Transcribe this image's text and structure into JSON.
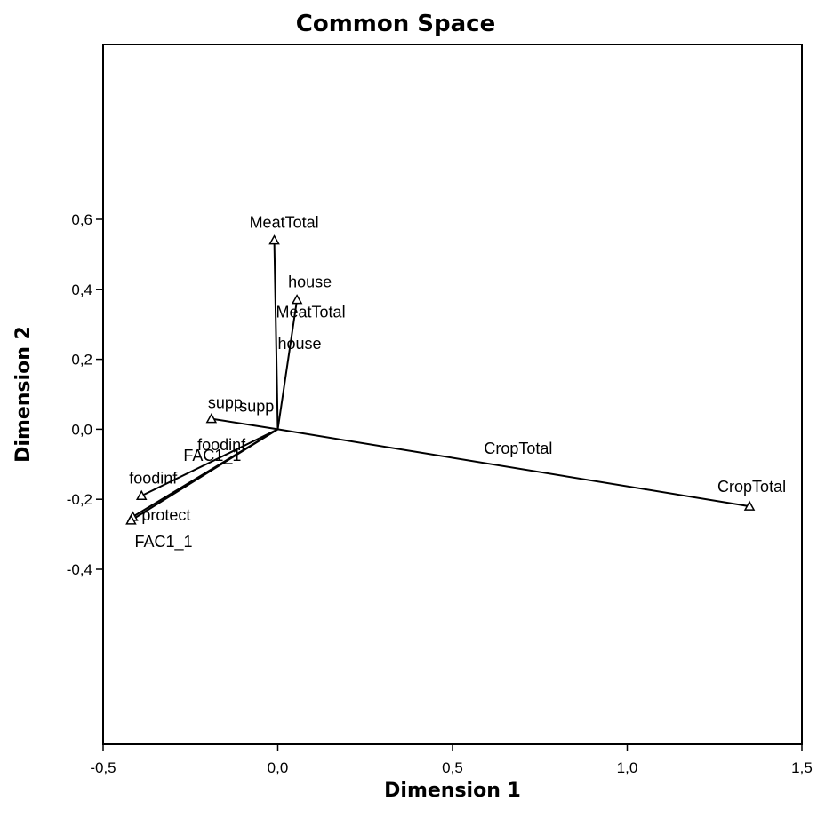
{
  "chart_data": {
    "type": "scatter",
    "title": "Common Space",
    "xlabel": "Dimension 1",
    "ylabel": "Dimension 2",
    "xlim": [
      -0.5,
      1.5
    ],
    "ylim": [
      -0.9,
      1.1
    ],
    "x_ticks": [
      -0.5,
      0.0,
      0.5,
      1.0,
      1.5
    ],
    "x_tick_labels": [
      "-0,5",
      "0,0",
      "0,5",
      "1,0",
      "1,5"
    ],
    "y_ticks": [
      -0.4,
      -0.2,
      0.0,
      0.2,
      0.4,
      0.6
    ],
    "y_tick_labels": [
      "-0,4",
      "-0,2",
      "0,0",
      "0,2",
      "0,4",
      "0,6"
    ],
    "grid": false,
    "legend": "none",
    "origin": [
      0.0,
      0.0
    ],
    "points": [
      {
        "label": "MeatTotal",
        "x": -0.01,
        "y": 0.54
      },
      {
        "label": "house",
        "x": 0.055,
        "y": 0.37
      },
      {
        "label": "supp",
        "x": -0.19,
        "y": 0.03
      },
      {
        "label": "foodinf",
        "x": -0.39,
        "y": -0.19
      },
      {
        "label": "protect",
        "x": -0.415,
        "y": -0.25
      },
      {
        "label": "FAC1_1",
        "x": -0.42,
        "y": -0.26
      },
      {
        "label": "CropTotal",
        "x": 1.35,
        "y": -0.22
      }
    ],
    "vector_labels": [
      {
        "label": "MeatTotal",
        "x": -0.005,
        "y": 0.32
      },
      {
        "label": "house",
        "x": 0.0,
        "y": 0.23
      },
      {
        "label": "supp",
        "x": -0.11,
        "y": 0.05
      },
      {
        "label": "foodinf",
        "x": -0.23,
        "y": -0.06
      },
      {
        "label": "FAC1_1",
        "x": -0.27,
        "y": -0.09
      },
      {
        "label": "CropTotal",
        "x": 0.59,
        "y": -0.07
      }
    ]
  }
}
